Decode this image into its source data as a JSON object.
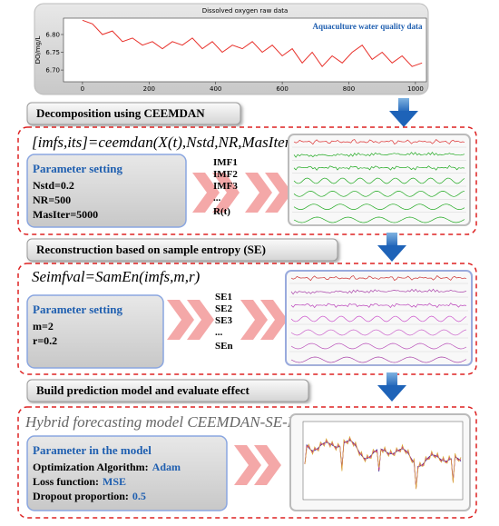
{
  "raw_chart": {
    "type": "line",
    "title": "Dissolved oxygen raw data",
    "ylabel": "DO/mg/L",
    "annotation": "Aquaculture water quality data",
    "color": "#e8302a",
    "x": [
      0,
      30,
      60,
      90,
      120,
      150,
      180,
      210,
      240,
      270,
      300,
      330,
      360,
      390,
      420,
      450,
      480,
      510,
      540,
      570,
      600,
      630,
      660,
      690,
      720,
      750,
      780,
      810,
      840,
      870,
      900,
      930,
      960,
      990,
      1020
    ],
    "values": [
      6.84,
      6.83,
      6.8,
      6.81,
      6.78,
      6.79,
      6.77,
      6.78,
      6.76,
      6.78,
      6.77,
      6.79,
      6.76,
      6.78,
      6.75,
      6.77,
      6.76,
      6.78,
      6.75,
      6.77,
      6.74,
      6.76,
      6.72,
      6.75,
      6.71,
      6.74,
      6.72,
      6.75,
      6.77,
      6.73,
      6.75,
      6.72,
      6.74,
      6.71,
      6.72
    ],
    "xlim": [
      -57,
      1033
    ],
    "ylim": [
      6.667,
      6.846
    ],
    "xticks": [
      0,
      200,
      400,
      600,
      800,
      1000
    ],
    "yticks": [
      {
        "value": 6.7,
        "label": "6.70"
      },
      {
        "value": 6.75,
        "label": "6.75"
      },
      {
        "value": 6.8,
        "label": "6.80"
      }
    ]
  },
  "steps": [
    {
      "header": "Decomposition using CEEMDAN",
      "formula": "[imfs,its]=ceemdan(X(t),Nstd,NR,MasIter)",
      "param_title": "Parameter setting",
      "params": [
        "Nstd=0.2",
        "NR=500",
        "MasIter=5000"
      ],
      "outputs": [
        "IMF1",
        "IMF2",
        "IMF3",
        "...",
        "R(t)"
      ]
    },
    {
      "header": "Reconstruction based on sample entropy (SE)",
      "formula": "Seimfval=SamEn(imfs,m,r)",
      "param_title": "Parameter setting",
      "params": [
        "m=2",
        "r=0.2"
      ],
      "outputs": [
        "SE1",
        "SE2",
        "SE3",
        "...",
        "SEn"
      ]
    },
    {
      "header": "Build prediction model and evaluate effect",
      "formula": "Hybrid forecasting model CEEMDAN-SE-LSTM",
      "param_title": "Parameter  in the model",
      "params": [
        {
          "label": "Optimization Algorithm:",
          "value": "Adam"
        },
        {
          "label": "Loss function:",
          "value": "MSE"
        },
        {
          "label": "Dropout proportion:",
          "value": "0.5"
        }
      ]
    }
  ]
}
